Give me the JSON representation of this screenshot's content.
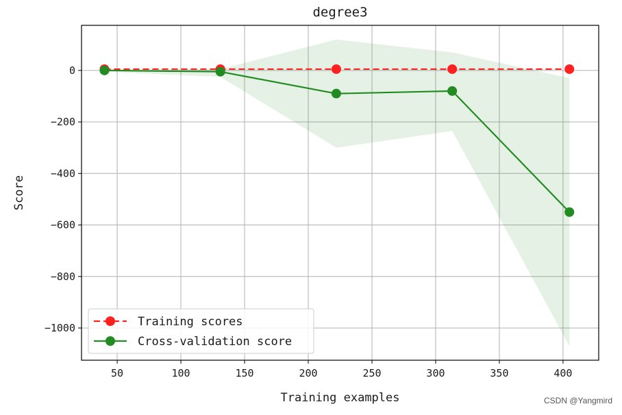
{
  "chart_data": {
    "type": "line",
    "title": "degree3",
    "xlabel": "Training examples",
    "ylabel": "Score",
    "xlim": [
      22,
      428
    ],
    "ylim": [
      -1125,
      175
    ],
    "xticks": [
      50,
      100,
      150,
      200,
      250,
      300,
      350,
      400
    ],
    "yticks": [
      0,
      -200,
      -400,
      -600,
      -800,
      -1000
    ],
    "grid": true,
    "legend_position": "lower-left",
    "x": [
      40,
      131,
      222,
      313,
      405
    ],
    "series": [
      {
        "name": "Training scores",
        "values": [
          5,
          5,
          5,
          5,
          5
        ],
        "color": "#ff2020",
        "line_style": "dashed",
        "marker": "circle"
      },
      {
        "name": "Cross-validation score",
        "values": [
          0,
          -5,
          -90,
          -80,
          -550
        ],
        "color": "#228b22",
        "line_style": "solid",
        "marker": "circle",
        "band_upper": [
          5,
          5,
          120,
          70,
          -30
        ],
        "band_lower": [
          -5,
          -25,
          -300,
          -235,
          -1070
        ],
        "band_color": "#228b22"
      }
    ]
  },
  "watermark": "CSDN @Yangmird"
}
